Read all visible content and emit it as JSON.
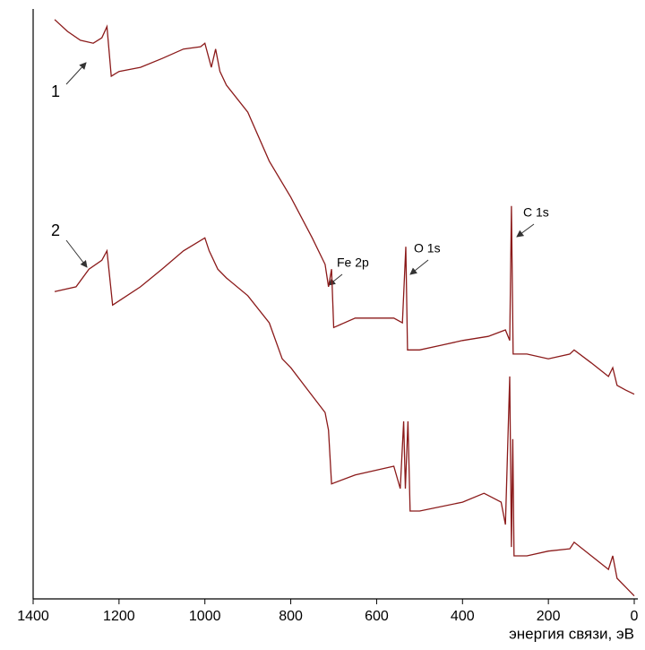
{
  "chart_data": {
    "type": "line",
    "x_label": "энергия связи, эВ",
    "xlim": [
      1400,
      0
    ],
    "xticks": [
      1400,
      1200,
      1000,
      800,
      600,
      400,
      200,
      0
    ],
    "ylim": [
      0,
      100
    ],
    "annotations": [
      "Fe 2p",
      "O 1s",
      "C 1s"
    ],
    "series": [
      {
        "name": "1",
        "color": "#8b1a1a",
        "x": [
          1350,
          1320,
          1290,
          1260,
          1240,
          1228,
          1218,
          1200,
          1150,
          1100,
          1050,
          1010,
          1000,
          985,
          975,
          965,
          950,
          900,
          850,
          800,
          750,
          720,
          712,
          705,
          700,
          650,
          560,
          540,
          532,
          528,
          500,
          450,
          400,
          340,
          300,
          290,
          286,
          282,
          250,
          200,
          150,
          140,
          100,
          60,
          50,
          40,
          20,
          0
        ],
        "values": [
          98.2,
          96.2,
          94.7,
          94.2,
          95.1,
          97.0,
          88.6,
          89.4,
          90.1,
          91.6,
          93.2,
          93.6,
          94.2,
          90.1,
          93.2,
          89.4,
          87.1,
          82.5,
          74.2,
          68.1,
          61.2,
          56.7,
          52.9,
          55.9,
          46.0,
          47.6,
          47.6,
          46.8,
          59.7,
          42.2,
          42.2,
          43.0,
          43.8,
          44.5,
          45.6,
          43.8,
          66.6,
          41.5,
          41.5,
          40.7,
          41.5,
          42.2,
          40.0,
          37.7,
          39.2,
          36.2,
          35.4,
          34.7
        ]
      },
      {
        "name": "2",
        "color": "#8b1a1a",
        "x": [
          1350,
          1300,
          1270,
          1240,
          1228,
          1215,
          1150,
          1100,
          1050,
          1000,
          990,
          970,
          950,
          900,
          850,
          820,
          800,
          760,
          720,
          712,
          705,
          650,
          560,
          545,
          537,
          533,
          527,
          522,
          500,
          400,
          350,
          310,
          300,
          290,
          286,
          283,
          280,
          250,
          200,
          150,
          140,
          100,
          60,
          50,
          40,
          20,
          0
        ],
        "values": [
          52.1,
          52.9,
          55.9,
          57.4,
          59.0,
          49.8,
          52.9,
          55.9,
          59.0,
          61.2,
          59.0,
          55.9,
          54.4,
          51.4,
          46.8,
          40.7,
          39.2,
          35.4,
          31.6,
          28.6,
          19.5,
          21.0,
          22.5,
          18.7,
          30.1,
          18.7,
          30.1,
          14.9,
          14.9,
          16.4,
          17.9,
          16.4,
          12.6,
          37.7,
          8.8,
          27.1,
          7.3,
          7.3,
          8.1,
          8.5,
          9.6,
          7.3,
          5.0,
          7.3,
          3.5,
          2.0,
          0.5
        ]
      }
    ]
  }
}
